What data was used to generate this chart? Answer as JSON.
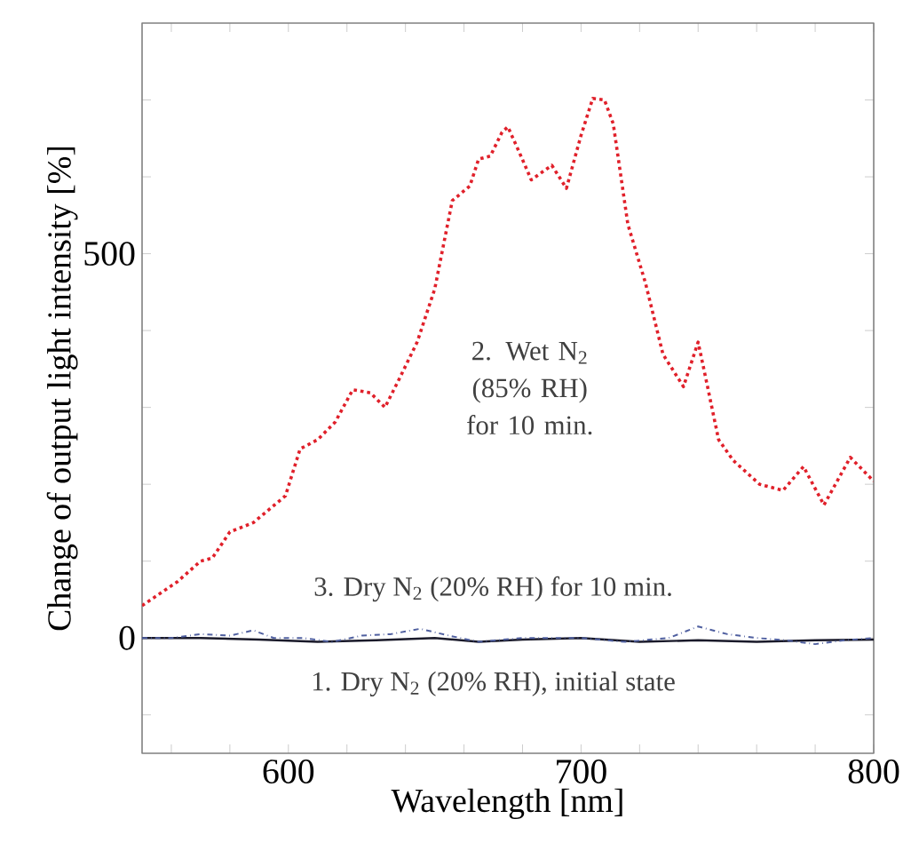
{
  "chart_data": {
    "type": "line",
    "xlabel": "Wavelength [nm]",
    "ylabel": "Change of output light intensity [%]",
    "xlim": [
      550,
      800
    ],
    "ylim": [
      -150,
      800
    ],
    "xticks": [
      {
        "value": 560,
        "label": null
      },
      {
        "value": 580,
        "label": null
      },
      600,
      {
        "value": 620,
        "label": null
      },
      {
        "value": 640,
        "label": null
      },
      {
        "value": 660,
        "label": null
      },
      {
        "value": 680,
        "label": null
      },
      700,
      {
        "value": 720,
        "label": null
      },
      {
        "value": 740,
        "label": null
      },
      {
        "value": 760,
        "label": null
      },
      {
        "value": 780,
        "label": null
      },
      800
    ],
    "yticks": [
      {
        "value": -100,
        "label": null
      },
      0,
      {
        "value": 100,
        "label": null
      },
      {
        "value": 200,
        "label": null
      },
      {
        "value": 300,
        "label": null
      },
      {
        "value": 400,
        "label": null
      },
      500,
      {
        "value": 600,
        "label": null
      },
      {
        "value": 700,
        "label": null
      }
    ],
    "series": [
      {
        "color": "#1a1a2a",
        "line_style": "solid",
        "x": [
          550,
          570,
          590,
          610,
          630,
          650,
          665,
          680,
          700,
          720,
          740,
          760,
          780,
          800
        ],
        "values": [
          0,
          0,
          -2,
          -5,
          -3,
          0,
          -5,
          -2,
          0,
          -5,
          -3,
          -5,
          -3,
          -2
        ]
      },
      {
        "color": "#e0202a",
        "line_style": "dotted",
        "x": [
          550,
          562,
          570,
          574,
          580,
          588,
          599,
          604,
          610,
          616,
          622,
          628,
          633,
          638,
          644,
          650,
          656,
          662,
          665,
          669,
          673,
          675,
          679,
          683,
          690,
          695,
          700,
          704,
          708,
          711,
          716,
          722,
          728,
          735,
          740,
          743,
          747,
          752,
          761,
          769,
          776,
          783,
          792,
          800
        ],
        "values": [
          42,
          73,
          100,
          104,
          138,
          150,
          185,
          246,
          258,
          281,
          323,
          319,
          300,
          338,
          385,
          454,
          569,
          588,
          623,
          627,
          658,
          665,
          631,
          596,
          615,
          585,
          654,
          702,
          700,
          669,
          538,
          462,
          369,
          327,
          385,
          331,
          258,
          231,
          200,
          192,
          223,
          173,
          235,
          204
        ]
      },
      {
        "color": "#5060a0",
        "line_style": "dashed",
        "x": [
          550,
          560,
          570,
          580,
          588,
          595,
          605,
          615,
          625,
          635,
          645,
          655,
          665,
          680,
          700,
          715,
          730,
          740,
          750,
          760,
          770,
          780,
          790,
          800
        ],
        "values": [
          0,
          0,
          5,
          3,
          10,
          0,
          0,
          -5,
          3,
          5,
          12,
          3,
          -5,
          0,
          0,
          -5,
          0,
          15,
          5,
          0,
          -3,
          -8,
          -3,
          0
        ]
      }
    ],
    "annotations": [
      "2. Wet N$_{2}$ (85% RH) for 10 min.",
      "3. Dry N$_{2}$ (20% RH) for 10 min.",
      "1. Dry N$_{2}$ (20% RH), initial state"
    ]
  }
}
